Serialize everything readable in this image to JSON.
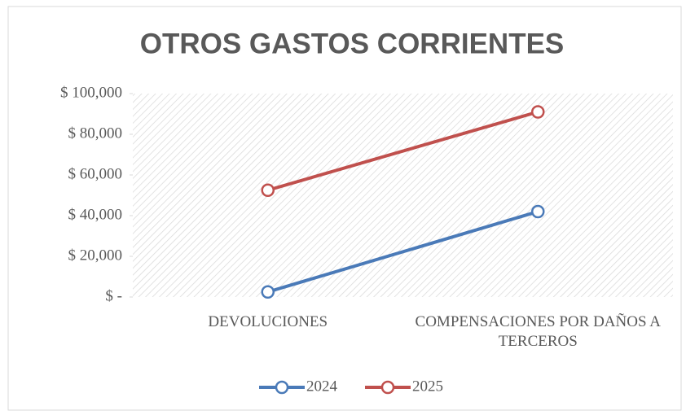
{
  "chart_data": {
    "type": "line",
    "title": "OTROS GASTOS CORRIENTES",
    "categories": [
      "DEVOLUCIONES",
      "COMPENSACIONES POR DAÑOS A TERCEROS"
    ],
    "series": [
      {
        "name": "2024",
        "color": "#4a7ab8",
        "values": [
          2500,
          42000
        ]
      },
      {
        "name": "2025",
        "color": "#c0504d",
        "values": [
          52500,
          91000
        ]
      }
    ],
    "ylim": [
      0,
      100000
    ],
    "yticks": [
      {
        "value": 0,
        "label": "$ -"
      },
      {
        "value": 20000,
        "label": "$ 20,000"
      },
      {
        "value": 40000,
        "label": "$ 40,000"
      },
      {
        "value": 60000,
        "label": "$ 60,000"
      },
      {
        "value": 80000,
        "label": "$ 80,000"
      },
      {
        "value": 100000,
        "label": "$ 100,000"
      }
    ],
    "legend": "bottom"
  }
}
